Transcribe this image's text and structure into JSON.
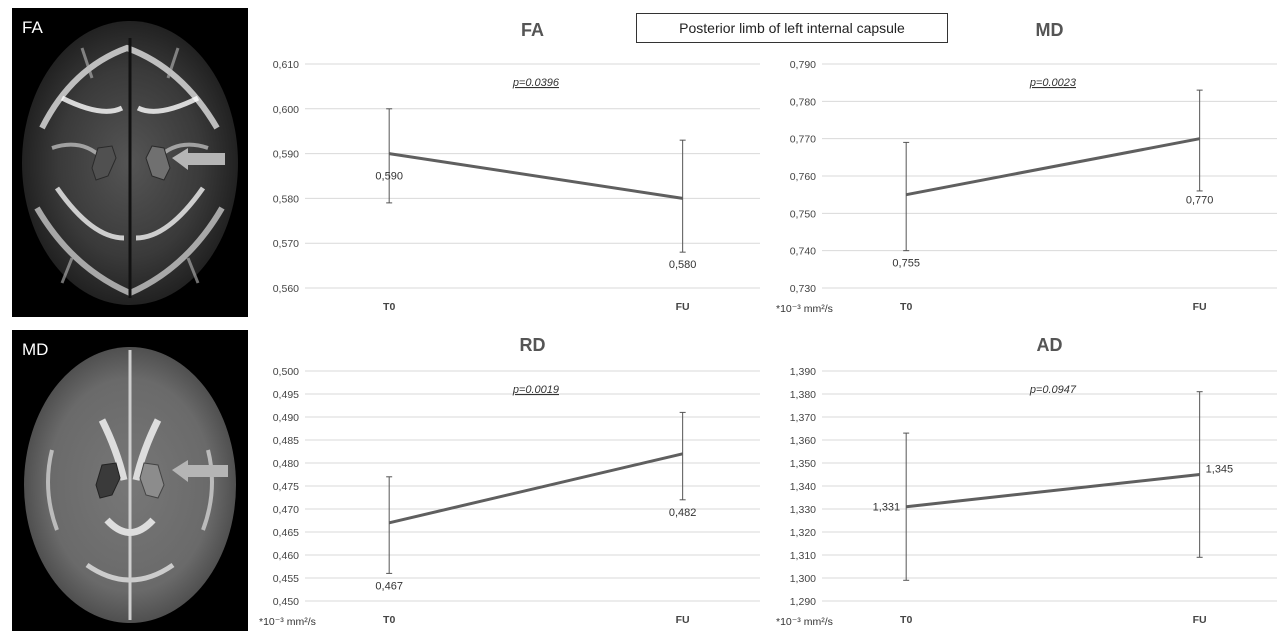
{
  "header_box": "Posterior limb of left internal capsule",
  "images": [
    {
      "label": "FA"
    },
    {
      "label": "MD"
    }
  ],
  "chart_data": [
    {
      "type": "line",
      "title": "FA",
      "categories": [
        "T0",
        "FU"
      ],
      "values": [
        0.59,
        0.58
      ],
      "value_labels": [
        "0,590",
        "0,580"
      ],
      "error_low": [
        0.579,
        0.568
      ],
      "error_high": [
        0.6,
        0.593
      ],
      "ylim": [
        0.56,
        0.61
      ],
      "ytick_step": 0.01,
      "ytick_labels": [
        "0,610",
        "0,600",
        "0,590",
        "0,580",
        "0,570",
        "0,560"
      ],
      "p_value": "p=0.0396",
      "p_underlined": true,
      "unit_note": "",
      "label_positions": [
        "below",
        "below"
      ],
      "grid": true
    },
    {
      "type": "line",
      "title": "MD",
      "categories": [
        "T0",
        "FU"
      ],
      "values": [
        0.755,
        0.77
      ],
      "value_labels": [
        "0,755",
        "0,770"
      ],
      "error_low": [
        0.74,
        0.756
      ],
      "error_high": [
        0.769,
        0.783
      ],
      "ylim": [
        0.73,
        0.79
      ],
      "ytick_step": 0.01,
      "ytick_labels": [
        "0,790",
        "0,780",
        "0,770",
        "0,760",
        "0,750",
        "0,740",
        "0,730"
      ],
      "p_value": "p=0.0023",
      "p_underlined": true,
      "unit_note": "*10⁻³ mm²/s",
      "label_positions": [
        "below",
        "below"
      ],
      "grid": true
    },
    {
      "type": "line",
      "title": "RD",
      "categories": [
        "T0",
        "FU"
      ],
      "values": [
        0.467,
        0.482
      ],
      "value_labels": [
        "0,467",
        "0,482"
      ],
      "error_low": [
        0.456,
        0.472
      ],
      "error_high": [
        0.477,
        0.491
      ],
      "ylim": [
        0.45,
        0.5
      ],
      "ytick_step": 0.005,
      "ytick_labels": [
        "0,500",
        "0,495",
        "0,490",
        "0,485",
        "0,480",
        "0,475",
        "0,470",
        "0,465",
        "0,460",
        "0,455",
        "0,450"
      ],
      "p_value": "p=0.0019",
      "p_underlined": true,
      "unit_note": "*10⁻³ mm²/s",
      "label_positions": [
        "below",
        "below"
      ],
      "grid": true
    },
    {
      "type": "line",
      "title": "AD",
      "categories": [
        "T0",
        "FU"
      ],
      "values": [
        1.331,
        1.345
      ],
      "value_labels": [
        "1,331",
        "1,345"
      ],
      "error_low": [
        1.299,
        1.309
      ],
      "error_high": [
        1.363,
        1.381
      ],
      "ylim": [
        1.29,
        1.39
      ],
      "ytick_step": 0.01,
      "ytick_labels": [
        "1,390",
        "1,380",
        "1,370",
        "1,360",
        "1,350",
        "1,340",
        "1,330",
        "1,320",
        "1,310",
        "1,300",
        "1,290"
      ],
      "p_value": "p=0.0947",
      "p_underlined": false,
      "unit_note": "*10⁻³ mm²/s",
      "label_positions": [
        "left",
        "right"
      ],
      "grid": true
    }
  ]
}
